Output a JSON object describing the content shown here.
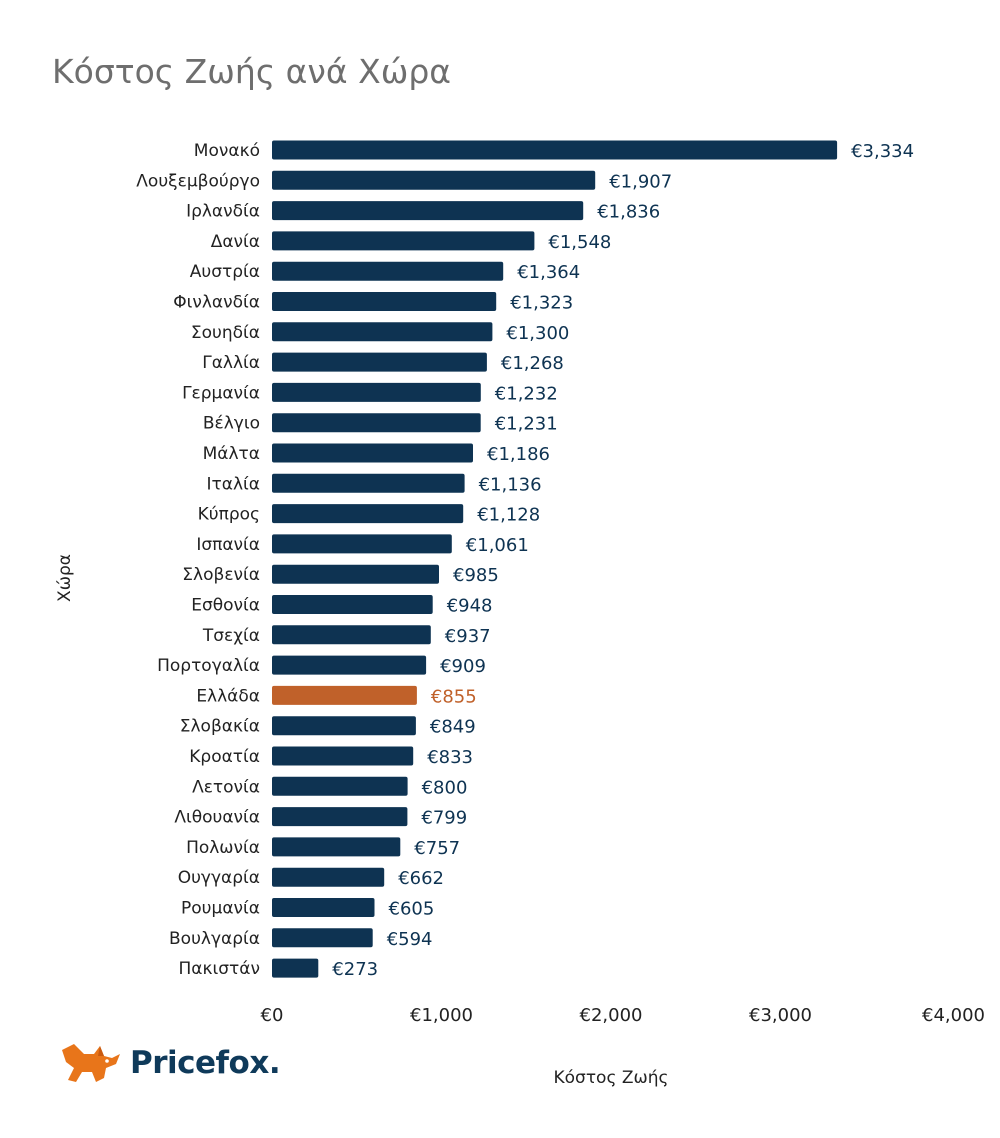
{
  "colors": {
    "bar": "#0e3352",
    "highlight": "#c0612a",
    "value_text": "#0e3352",
    "highlight_text": "#c0612a"
  },
  "logo": {
    "text": "Pricefox.",
    "icon": "fox-icon",
    "icon_color": "#e8751a"
  },
  "chart_data": {
    "type": "bar",
    "orientation": "horizontal",
    "title": "Κόστος Ζωής ανά Χώρα",
    "xlabel": "Κόστος Ζωής",
    "ylabel": "Χώρα",
    "xlim": [
      0,
      4000
    ],
    "xticks": [
      0,
      1000,
      2000,
      3000,
      4000
    ],
    "xtick_labels": [
      "€0",
      "€1,000",
      "€2,000",
      "€3,000",
      "€4,000"
    ],
    "highlight_category": "Ελλάδα",
    "categories": [
      "Μονακό",
      "Λουξεμβούργο",
      "Ιρλανδία",
      "Δανία",
      "Αυστρία",
      "Φινλανδία",
      "Σουηδία",
      "Γαλλία",
      "Γερμανία",
      "Βέλγιο",
      "Μάλτα",
      "Ιταλία",
      "Κύπρος",
      "Ισπανία",
      "Σλοβενία",
      "Εσθονία",
      "Τσεχία",
      "Πορτογαλία",
      "Ελλάδα",
      "Σλοβακία",
      "Κροατία",
      "Λετονία",
      "Λιθουανία",
      "Πολωνία",
      "Ουγγαρία",
      "Ρουμανία",
      "Βουλγαρία",
      "Πακιστάν"
    ],
    "values": [
      3334,
      1907,
      1836,
      1548,
      1364,
      1323,
      1300,
      1268,
      1232,
      1231,
      1186,
      1136,
      1128,
      1061,
      985,
      948,
      937,
      909,
      855,
      849,
      833,
      800,
      799,
      757,
      662,
      605,
      594,
      273
    ],
    "value_labels": [
      "€3,334",
      "€1,907",
      "€1,836",
      "€1,548",
      "€1,364",
      "€1,323",
      "€1,300",
      "€1,268",
      "€1,232",
      "€1,231",
      "€1,186",
      "€1,136",
      "€1,128",
      "€1,061",
      "€985",
      "€948",
      "€937",
      "€909",
      "€855",
      "€849",
      "€833",
      "€800",
      "€799",
      "€757",
      "€662",
      "€605",
      "€594",
      "€273"
    ],
    "grid": false,
    "legend": "none"
  }
}
